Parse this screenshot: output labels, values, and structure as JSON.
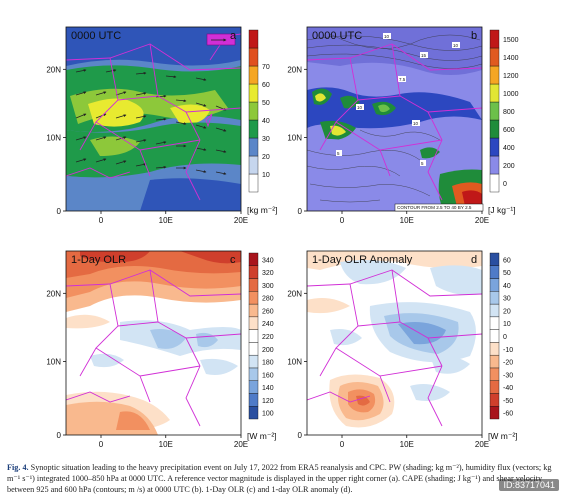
{
  "panels": [
    {
      "id": "a",
      "title": "0000 UTC",
      "letter": "a",
      "unit": "[kg m⁻²]",
      "xticks": [
        "0",
        "10E",
        "20E"
      ],
      "yticks": [
        "0",
        "10N",
        "20N"
      ],
      "colorbar": [
        "10",
        "20",
        "30",
        "40",
        "50",
        "60",
        "70"
      ],
      "colors": [
        "#ffffff",
        "#c6d6ee",
        "#5b86c8",
        "#1f9a4a",
        "#8dc83a",
        "#e8ea30",
        "#f5a623",
        "#e0501f",
        "#c01818"
      ]
    },
    {
      "id": "b",
      "title": "0000 UTC",
      "letter": "b",
      "unit": "[J kg⁻¹]",
      "xticks": [
        "0",
        "10E",
        "20E"
      ],
      "yticks": [
        "0",
        "10N",
        "20N"
      ],
      "colorbar": [
        "0",
        "200",
        "400",
        "600",
        "800",
        "1000",
        "1200",
        "1400",
        "1500"
      ],
      "contour_note": "CONTOUR FROM 2.5 TO 40 BY 2.5",
      "colors": [
        "#ffffff",
        "#8a8ae8",
        "#2c47c0",
        "#1f8c3a",
        "#6cc04a",
        "#e2e634",
        "#f5a623",
        "#e05a20",
        "#c01818"
      ]
    },
    {
      "id": "c",
      "title": "1-Day OLR",
      "letter": "c",
      "unit": "[W m⁻²]",
      "xticks": [
        "0",
        "10E",
        "20E"
      ],
      "yticks": [
        "0",
        "10N",
        "20N"
      ],
      "colorbar": [
        "100",
        "120",
        "140",
        "160",
        "180",
        "200",
        "220",
        "240",
        "260",
        "280",
        "300",
        "320",
        "340"
      ],
      "colors": [
        "#2a4fa0",
        "#4f7bc8",
        "#7aa4dc",
        "#a8c8ea",
        "#d2e4f4",
        "#ffffff",
        "#ffffff",
        "#fde0c8",
        "#f9b98e",
        "#f29060",
        "#e46a42",
        "#cf3f2c",
        "#a8141c"
      ]
    },
    {
      "id": "d",
      "title": "1-Day OLR Anomaly",
      "letter": "d",
      "unit": "[W m⁻²]",
      "xticks": [
        "0",
        "10E",
        "20E"
      ],
      "yticks": [
        "0",
        "10N",
        "20N"
      ],
      "colorbar": [
        "60",
        "50",
        "40",
        "30",
        "20",
        "10",
        "0",
        "-10",
        "-20",
        "-30",
        "-40",
        "-50",
        "-60"
      ],
      "colors": [
        "#a8141c",
        "#cf3f2c",
        "#e46a42",
        "#f29060",
        "#f9b98e",
        "#fde0c8",
        "#ffffff",
        "#ffffff",
        "#d2e4f4",
        "#a8c8ea",
        "#7aa4dc",
        "#4f7bc8",
        "#2a4fa0"
      ]
    }
  ],
  "caption": {
    "label": "Fig. 4.",
    "text": "Synoptic situation leading to the heavy precipitation event on July 17, 2022 from ERA5 reanalysis and CPC. PW (shading; kg m⁻²), humidity flux (vectors; kg m⁻¹ s⁻¹) integrated 1000–850 hPa at 0000 UTC. A reference vector magnitude is displayed in the upper right corner (a). CAPE (shading; J kg⁻¹) and shear velocity between 925 and 600 hPa (contours; m /s) at 0000 UTC (b). 1-Day OLR (c) and 1-day OLR anomaly (d)."
  },
  "watermark": "ID:83717041"
}
